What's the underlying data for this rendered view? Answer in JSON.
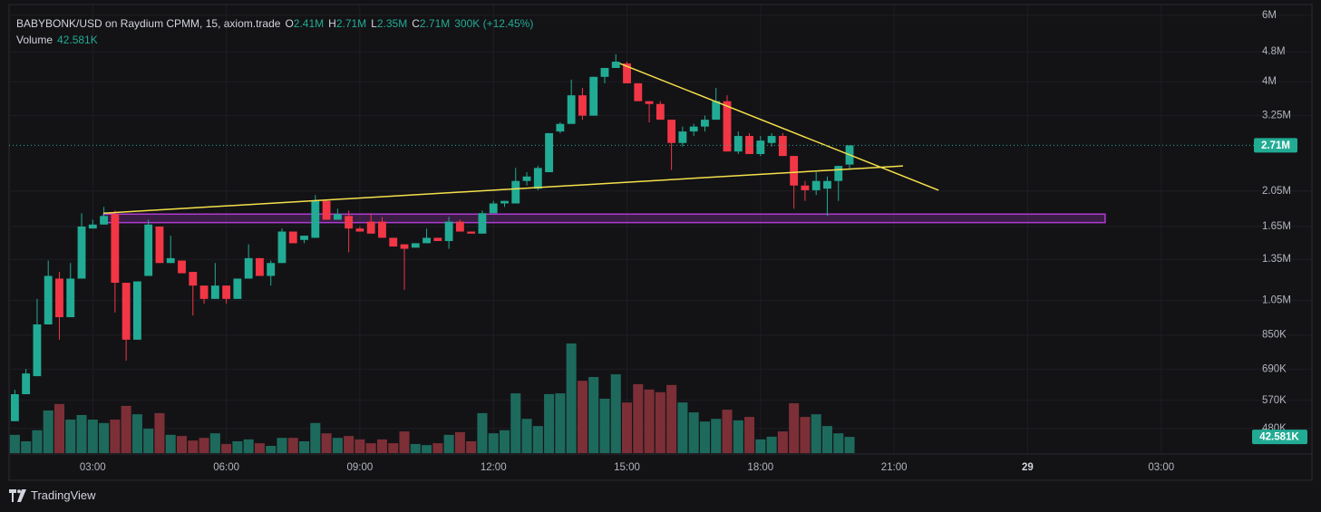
{
  "header": {
    "symbol": "BABYBONK/USD on Raydium CPMM, 15, axiom.trade",
    "ohlc": [
      {
        "key": "O",
        "label": "2.41M"
      },
      {
        "key": "H",
        "label": "2.71M"
      },
      {
        "key": "L",
        "label": "2.35M"
      },
      {
        "key": "C",
        "label": "2.71M"
      }
    ],
    "change": "300K (+12.45%)",
    "volume_title": "Volume",
    "volume_label": "42.581K"
  },
  "chart_data": {
    "type": "candlestick",
    "x": [
      1.25,
      1.5,
      1.75,
      2,
      2.25,
      2.5,
      2.75,
      3,
      3.25,
      3.5,
      3.75,
      4,
      4.25,
      4.5,
      4.75,
      5,
      5.25,
      5.5,
      5.75,
      6,
      6.25,
      6.5,
      6.75,
      7,
      7.25,
      7.5,
      7.75,
      8,
      8.25,
      8.5,
      8.75,
      9,
      9.25,
      9.5,
      9.75,
      10,
      10.25,
      10.5,
      10.75,
      11,
      11.25,
      11.5,
      11.75,
      12,
      12.25,
      12.5,
      12.75,
      13,
      13.25,
      13.5,
      13.75,
      14,
      14.25,
      14.5,
      14.75,
      15,
      15.25,
      15.5,
      15.75,
      16,
      16.25,
      16.5,
      16.75,
      17,
      17.25,
      17.5,
      17.75,
      18,
      18.25,
      18.5,
      18.75,
      19,
      19.25,
      19.5,
      19.75,
      20
    ],
    "open": [
      502000,
      592000,
      661000,
      907000,
      1200000,
      948000,
      1200000,
      1630000,
      1670000,
      1780000,
      1170000,
      826000,
      1220000,
      1650000,
      1320000,
      1340000,
      1250000,
      1150000,
      1060000,
      1150000,
      1060000,
      1200000,
      1360000,
      1220000,
      1320000,
      1600000,
      1520000,
      1540000,
      1930000,
      1720000,
      1760000,
      1630000,
      1700000,
      1700000,
      1540000,
      1480000,
      1450000,
      1490000,
      1540000,
      1510000,
      1700000,
      1600000,
      1580000,
      1790000,
      1900000,
      1900000,
      2180000,
      2080000,
      2300000,
      2950000,
      3090000,
      3680000,
      3250000,
      4120000,
      4350000,
      4470000,
      3960000,
      3550000,
      3490000,
      3170000,
      2750000,
      2950000,
      3040000,
      3170000,
      3550000,
      2610000,
      2870000,
      2570000,
      2750000,
      2870000,
      2540000,
      2120000,
      2060000,
      2080000,
      2180000,
      2410000
    ],
    "high": [
      608000,
      691000,
      1060000,
      1340000,
      1250000,
      1320000,
      1790000,
      1720000,
      1860000,
      1820000,
      1170000,
      1180000,
      1720000,
      1650000,
      1560000,
      1340000,
      1250000,
      1150000,
      1320000,
      1150000,
      1200000,
      1480000,
      1360000,
      1340000,
      1630000,
      1600000,
      1560000,
      2000000,
      1930000,
      1840000,
      1820000,
      1650000,
      1790000,
      1750000,
      1540000,
      1480000,
      1480000,
      1630000,
      1540000,
      1750000,
      1720000,
      1600000,
      1820000,
      1930000,
      1930000,
      2360000,
      2300000,
      2390000,
      2920000,
      3120000,
      4050000,
      3850000,
      4120000,
      4350000,
      4730000,
      4520000,
      3960000,
      3550000,
      3550000,
      3170000,
      3040000,
      3090000,
      3250000,
      3850000,
      3680000,
      2950000,
      2920000,
      2870000,
      2920000,
      2920000,
      2540000,
      2180000,
      2300000,
      2240000,
      2390000,
      2710000
    ],
    "low": [
      502000,
      592000,
      661000,
      907000,
      826000,
      948000,
      1200000,
      1630000,
      1670000,
      975000,
      727000,
      826000,
      1220000,
      1320000,
      1320000,
      1240000,
      958000,
      1030000,
      1060000,
      1030000,
      1060000,
      1200000,
      1220000,
      1150000,
      1320000,
      1490000,
      1490000,
      1540000,
      1720000,
      1720000,
      1410000,
      1600000,
      1580000,
      1540000,
      1460000,
      1120000,
      1450000,
      1490000,
      1510000,
      1440000,
      1600000,
      1580000,
      1580000,
      1790000,
      1860000,
      1900000,
      2120000,
      2060000,
      2300000,
      2920000,
      3090000,
      3170000,
      3250000,
      3960000,
      4350000,
      3960000,
      3550000,
      3120000,
      3170000,
      2330000,
      2690000,
      2870000,
      2950000,
      3170000,
      2610000,
      2570000,
      2570000,
      2540000,
      2690000,
      2540000,
      1840000,
      1930000,
      2000000,
      1760000,
      1930000,
      2350000
    ],
    "close": [
      592000,
      672000,
      907000,
      1220000,
      948000,
      1200000,
      1650000,
      1670000,
      1760000,
      1170000,
      826000,
      1180000,
      1670000,
      1320000,
      1360000,
      1240000,
      1150000,
      1060000,
      1150000,
      1060000,
      1200000,
      1360000,
      1220000,
      1320000,
      1600000,
      1490000,
      1560000,
      1930000,
      1720000,
      1780000,
      1630000,
      1600000,
      1580000,
      1540000,
      1460000,
      1440000,
      1490000,
      1540000,
      1510000,
      1700000,
      1600000,
      1580000,
      1790000,
      1900000,
      1930000,
      2180000,
      2240000,
      2360000,
      2920000,
      3090000,
      3680000,
      3250000,
      4120000,
      4350000,
      4520000,
      3960000,
      3550000,
      3490000,
      3170000,
      2750000,
      2950000,
      3040000,
      3170000,
      3550000,
      2610000,
      2870000,
      2570000,
      2790000,
      2870000,
      2540000,
      2120000,
      2060000,
      2180000,
      2180000,
      2390000,
      2710000
    ],
    "volume": [
      48000,
      31000,
      60000,
      112000,
      129000,
      88000,
      100000,
      88000,
      79000,
      88000,
      124000,
      102000,
      64000,
      105000,
      48000,
      45000,
      33000,
      40000,
      52000,
      24000,
      31000,
      36000,
      26000,
      19000,
      40000,
      40000,
      31000,
      79000,
      52000,
      40000,
      45000,
      36000,
      26000,
      36000,
      26000,
      57000,
      24000,
      21000,
      26000,
      48000,
      55000,
      31000,
      105000,
      52000,
      60000,
      157000,
      90000,
      71000,
      155000,
      157000,
      288000,
      190000,
      200000,
      143000,
      207000,
      133000,
      181000,
      167000,
      160000,
      179000,
      133000,
      107000,
      83000,
      90000,
      114000,
      86000,
      95000,
      36000,
      43000,
      57000,
      131000,
      95000,
      102000,
      71000,
      52000,
      42581
    ],
    "up_color": "#22ab94",
    "down_color": "#f23645",
    "volume_up_color": "#1d6a5d",
    "volume_down_color": "#7c2f36",
    "log": true,
    "grid": true,
    "ylim": [
      413000,
      6410000
    ],
    "yticks": [
      {
        "value": 6000000,
        "label": "6M"
      },
      {
        "value": 4800000,
        "label": "4.8M"
      },
      {
        "value": 4000000,
        "label": "4M"
      },
      {
        "value": 3250000,
        "label": "3.25M"
      },
      {
        "value": 2050000,
        "label": "2.05M"
      },
      {
        "value": 1650000,
        "label": "1.65M"
      },
      {
        "value": 1350000,
        "label": "1.35M"
      },
      {
        "value": 1050000,
        "label": "1.05M"
      },
      {
        "value": 850000,
        "label": "850K"
      },
      {
        "value": 690000,
        "label": "690K"
      },
      {
        "value": 570000,
        "label": "570K"
      },
      {
        "value": 480000,
        "label": "480K"
      }
    ],
    "xlim": [
      1.12,
      28.92
    ],
    "xticks": [
      {
        "value": 3,
        "label": "03:00"
      },
      {
        "value": 6,
        "label": "06:00"
      },
      {
        "value": 9,
        "label": "09:00"
      },
      {
        "value": 12,
        "label": "12:00"
      },
      {
        "value": 15,
        "label": "15:00"
      },
      {
        "value": 18,
        "label": "18:00"
      },
      {
        "value": 21,
        "label": "21:00"
      },
      {
        "value": 24,
        "label": "29"
      },
      {
        "value": 27,
        "label": "03:00"
      }
    ],
    "volume_lim": [
      0,
      500000
    ],
    "trend_lines": [
      {
        "x": [
          3.24,
          21.2
        ],
        "y": [
          1790000,
          2390000
        ],
        "color": "#f5e14b"
      },
      {
        "x": [
          14.84,
          22.0
        ],
        "y": [
          4470000,
          2060000
        ],
        "color": "#f5e14b"
      }
    ],
    "zone": {
      "x": [
        3.24,
        25.74
      ],
      "y": [
        1780000,
        1690000
      ],
      "color": "#b03bd1"
    }
  },
  "footer": {
    "brand": "TradingView"
  }
}
